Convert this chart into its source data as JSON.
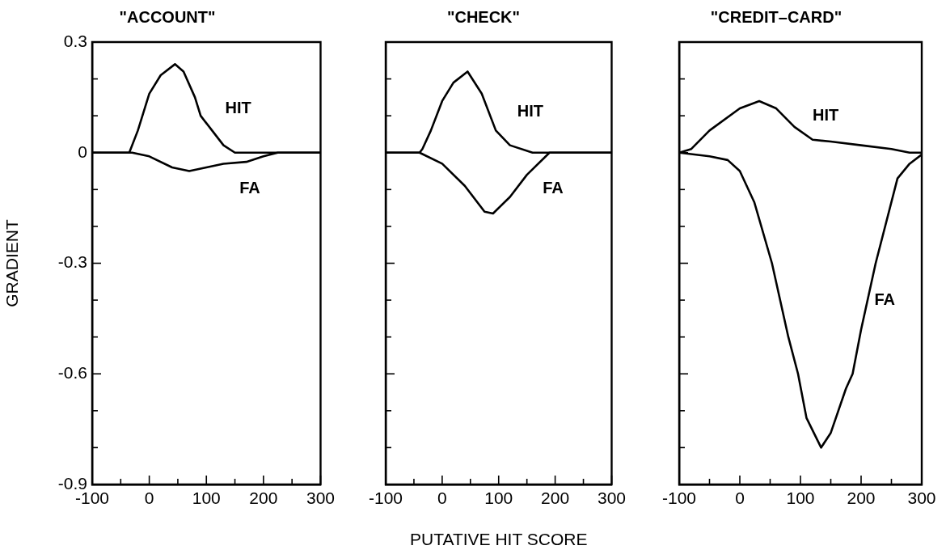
{
  "chart_data": [
    {
      "type": "line",
      "title": "\"ACCOUNT\"",
      "ylabel": "GRADIENT",
      "xlim": [
        -100,
        300
      ],
      "xticks": [
        -100,
        {
          "value": -50,
          "label": null
        },
        0,
        {
          "value": 50,
          "label": null
        },
        100,
        {
          "value": 150,
          "label": null
        },
        200,
        {
          "value": 250,
          "label": null
        },
        300
      ],
      "ylim": [
        -0.9,
        0.3
      ],
      "yticks": [
        -0.9,
        {
          "value": -0.8,
          "label": null
        },
        {
          "value": -0.7,
          "label": null
        },
        -0.6,
        {
          "value": -0.5,
          "label": null
        },
        {
          "value": -0.4,
          "label": null
        },
        -0.3,
        {
          "value": -0.2,
          "label": null
        },
        {
          "value": -0.1,
          "label": null
        },
        0,
        {
          "value": 0.1,
          "label": null
        },
        {
          "value": 0.2,
          "label": null
        },
        0.3
      ],
      "marker": "none",
      "line_style": "solid",
      "legend": false,
      "series": [
        {
          "name": "HIT",
          "color": "#000000",
          "x": [
            -100,
            -35,
            -20,
            0,
            20,
            45,
            60,
            80,
            90,
            110,
            130,
            150,
            300
          ],
          "values": [
            0,
            0,
            0.06,
            0.16,
            0.21,
            0.24,
            0.22,
            0.15,
            0.1,
            0.06,
            0.02,
            0,
            0
          ]
        },
        {
          "name": "FA",
          "color": "#000000",
          "x": [
            -100,
            -30,
            0,
            40,
            70,
            100,
            130,
            170,
            200,
            225,
            300
          ],
          "values": [
            0,
            0,
            -0.01,
            -0.04,
            -0.05,
            -0.04,
            -0.03,
            -0.025,
            -0.01,
            0,
            0
          ]
        }
      ]
    },
    {
      "type": "line",
      "title": "\"CHECK\"",
      "xlabel": "PUTATIVE HIT SCORE",
      "tick_labels": "x",
      "xlim": [
        -100,
        300
      ],
      "xticks": [
        -100,
        {
          "value": -50,
          "label": null
        },
        0,
        {
          "value": 50,
          "label": null
        },
        100,
        {
          "value": 150,
          "label": null
        },
        200,
        {
          "value": 250,
          "label": null
        },
        300
      ],
      "ylim": [
        -0.9,
        0.3
      ],
      "yticks": [
        -0.9,
        {
          "value": -0.8,
          "label": null
        },
        {
          "value": -0.7,
          "label": null
        },
        -0.6,
        {
          "value": -0.5,
          "label": null
        },
        {
          "value": -0.4,
          "label": null
        },
        -0.3,
        {
          "value": -0.2,
          "label": null
        },
        {
          "value": -0.1,
          "label": null
        },
        0,
        {
          "value": 0.1,
          "label": null
        },
        {
          "value": 0.2,
          "label": null
        },
        0.3
      ],
      "marker": "none",
      "line_style": "solid",
      "legend": false,
      "series": [
        {
          "name": "HIT",
          "color": "#000000",
          "x": [
            -100,
            -40,
            -35,
            -20,
            0,
            20,
            45,
            70,
            95,
            120,
            160,
            300
          ],
          "values": [
            0,
            0,
            0.01,
            0.06,
            0.14,
            0.19,
            0.22,
            0.16,
            0.06,
            0.02,
            0,
            0
          ]
        },
        {
          "name": "FA",
          "color": "#000000",
          "x": [
            -100,
            -40,
            0,
            40,
            75,
            90,
            120,
            150,
            190,
            300
          ],
          "values": [
            0,
            0,
            -0.03,
            -0.09,
            -0.16,
            -0.165,
            -0.12,
            -0.06,
            0,
            0
          ]
        }
      ]
    },
    {
      "type": "line",
      "title": "\"CREDIT–CARD\"",
      "tick_labels": "x",
      "xlim": [
        -100,
        300
      ],
      "xticks": [
        -100,
        {
          "value": -50,
          "label": null
        },
        0,
        {
          "value": 50,
          "label": null
        },
        100,
        {
          "value": 150,
          "label": null
        },
        200,
        {
          "value": 250,
          "label": null
        },
        300
      ],
      "ylim": [
        -0.9,
        0.3
      ],
      "yticks": [
        -0.9,
        {
          "value": -0.8,
          "label": null
        },
        {
          "value": -0.7,
          "label": null
        },
        -0.6,
        {
          "value": -0.5,
          "label": null
        },
        {
          "value": -0.4,
          "label": null
        },
        -0.3,
        {
          "value": -0.2,
          "label": null
        },
        {
          "value": -0.1,
          "label": null
        },
        0,
        {
          "value": 0.1,
          "label": null
        },
        {
          "value": 0.2,
          "label": null
        },
        0.3
      ],
      "marker": "none",
      "line_style": "solid",
      "legend": false,
      "series": [
        {
          "name": "HIT",
          "color": "#000000",
          "x": [
            -100,
            -80,
            -50,
            0,
            32,
            60,
            90,
            120,
            150,
            200,
            250,
            280,
            300
          ],
          "values": [
            0,
            0.01,
            0.06,
            0.12,
            0.14,
            0.12,
            0.07,
            0.035,
            0.03,
            0.02,
            0.01,
            0,
            0
          ]
        },
        {
          "name": "FA",
          "color": "#000000",
          "x": [
            -100,
            -50,
            -20,
            0,
            24,
            53,
            80,
            96,
            110,
            134,
            150,
            175,
            186,
            200,
            224,
            260,
            280,
            300
          ],
          "values": [
            0,
            -0.01,
            -0.02,
            -0.05,
            -0.135,
            -0.3,
            -0.5,
            -0.6,
            -0.72,
            -0.8,
            -0.76,
            -0.64,
            -0.6,
            -0.48,
            -0.3,
            -0.07,
            -0.03,
            -0.005
          ]
        }
      ]
    }
  ]
}
